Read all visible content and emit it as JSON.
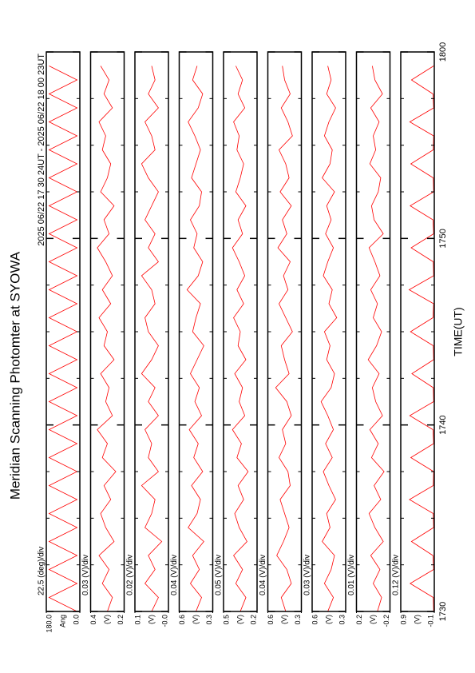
{
  "chart_data": {
    "type": "line",
    "title": "Meridian Scanning Photomter at SYOWA",
    "subtitle": "2025 06/22 17 30 24UT - 2025 06/22 18 00 23UT",
    "xlabel": "TIME(UT)",
    "color": "#ff0000",
    "xlim": [
      0,
      30
    ],
    "xticks": [
      {
        "value": 0,
        "label": "1730"
      },
      {
        "value": 10,
        "label": "1740"
      },
      {
        "value": 20,
        "label": "1750"
      },
      {
        "value": 30,
        "label": "1800"
      }
    ],
    "xminor": [
      2.5,
      5,
      7.5,
      12.5,
      15,
      17.5,
      22.5,
      25,
      27.5
    ],
    "x": [
      0,
      0.75,
      1.5,
      2.25,
      3,
      3.75,
      4.5,
      5.25,
      6,
      6.75,
      7.5,
      8.25,
      9,
      9.75,
      10.5,
      11.25,
      12,
      12.75,
      13.5,
      14.25,
      15,
      15.75,
      16.5,
      17.25,
      18,
      18.75,
      19.5,
      20.25,
      21,
      21.75,
      22.5,
      23.25,
      24,
      24.75,
      25.5,
      26.25,
      27,
      27.75,
      28.5,
      29.25
    ],
    "panels": [
      {
        "scale": "22.5 (deg)/div",
        "unit": "Ang",
        "ylim": [
          0,
          180
        ],
        "yticks": [
          {
            "value": 0,
            "label": "0.0"
          },
          {
            "value": 180,
            "label": "180.0"
          }
        ],
        "values": [
          15,
          165,
          15,
          165,
          15,
          165,
          15,
          165,
          15,
          165,
          15,
          165,
          15,
          165,
          15,
          165,
          15,
          165,
          15,
          165,
          15,
          165,
          15,
          165,
          15,
          165,
          15,
          165,
          15,
          165,
          15,
          165,
          15,
          165,
          15,
          165,
          15,
          165,
          15,
          165
        ]
      },
      {
        "scale": "0.03 (V)/div",
        "unit": "(V)",
        "ylim": [
          0.2,
          0.4
        ],
        "yticks": [
          0.2,
          0.4
        ],
        "values": [
          0.3,
          0.27,
          0.33,
          0.29,
          0.35,
          0.26,
          0.31,
          0.34,
          0.28,
          0.32,
          0.25,
          0.33,
          0.3,
          0.36,
          0.27,
          0.31,
          0.29,
          0.34,
          0.26,
          0.32,
          0.3,
          0.35,
          0.28,
          0.33,
          0.27,
          0.31,
          0.36,
          0.29,
          0.32,
          0.26,
          0.34,
          0.3,
          0.28,
          0.33,
          0.31,
          0.35,
          0.27,
          0.32,
          0.29,
          0.34
        ]
      },
      {
        "scale": "0.02 (V)/div",
        "unit": "(V)",
        "ylim": [
          0,
          0.1
        ],
        "yticks": [
          {
            "value": 0,
            "label": "-0.0"
          },
          0.1
        ],
        "values": [
          0.05,
          0.03,
          0.07,
          0.04,
          0.06,
          0.02,
          0.07,
          0.05,
          0.04,
          0.08,
          0.03,
          0.06,
          0.05,
          0.07,
          0.03,
          0.06,
          0.04,
          0.08,
          0.05,
          0.03,
          0.06,
          0.07,
          0.04,
          0.05,
          0.08,
          0.03,
          0.06,
          0.04,
          0.07,
          0.05,
          0.03,
          0.06,
          0.08,
          0.04,
          0.05,
          0.07,
          0.03,
          0.06,
          0.04,
          0.05
        ]
      },
      {
        "scale": "0.04 (V)/div",
        "unit": "(V)",
        "ylim": [
          0.3,
          0.6
        ],
        "yticks": [
          0.3,
          0.6
        ],
        "values": [
          0.45,
          0.4,
          0.5,
          0.42,
          0.48,
          0.38,
          0.52,
          0.44,
          0.41,
          0.49,
          0.39,
          0.47,
          0.43,
          0.51,
          0.4,
          0.46,
          0.42,
          0.5,
          0.44,
          0.38,
          0.48,
          0.45,
          0.41,
          0.53,
          0.43,
          0.39,
          0.47,
          0.44,
          0.5,
          0.42,
          0.4,
          0.49,
          0.45,
          0.41,
          0.46,
          0.52,
          0.43,
          0.39,
          0.48,
          0.44
        ]
      },
      {
        "scale": "0.05 (V)/div",
        "unit": "(V)",
        "ylim": [
          0.2,
          0.5
        ],
        "yticks": [
          0.2,
          0.5
        ],
        "values": [
          0.35,
          0.3,
          0.39,
          0.33,
          0.41,
          0.29,
          0.36,
          0.4,
          0.32,
          0.37,
          0.28,
          0.38,
          0.34,
          0.42,
          0.31,
          0.36,
          0.33,
          0.4,
          0.3,
          0.37,
          0.35,
          0.41,
          0.32,
          0.38,
          0.31,
          0.36,
          0.42,
          0.33,
          0.37,
          0.3,
          0.39,
          0.35,
          0.32,
          0.38,
          0.36,
          0.41,
          0.31,
          0.37,
          0.33,
          0.39
        ]
      },
      {
        "scale": "0.04 (V)/div",
        "unit": "(V)",
        "ylim": [
          0.3,
          0.6
        ],
        "yticks": [
          0.3,
          0.6
        ],
        "values": [
          0.44,
          0.48,
          0.39,
          0.43,
          0.52,
          0.46,
          0.41,
          0.45,
          0.49,
          0.4,
          0.42,
          0.5,
          0.44,
          0.47,
          0.39,
          0.43,
          0.53,
          0.41,
          0.45,
          0.48,
          0.38,
          0.44,
          0.5,
          0.42,
          0.46,
          0.4,
          0.51,
          0.43,
          0.47,
          0.39,
          0.49,
          0.41,
          0.44,
          0.5,
          0.38,
          0.42,
          0.48,
          0.4,
          0.45,
          0.47
        ]
      },
      {
        "scale": "0.03 (V)/div",
        "unit": "(V)",
        "ylim": [
          0.3,
          0.6
        ],
        "yticks": [
          0.3,
          0.6
        ],
        "values": [
          0.46,
          0.41,
          0.49,
          0.43,
          0.4,
          0.51,
          0.44,
          0.47,
          0.39,
          0.45,
          0.5,
          0.42,
          0.48,
          0.41,
          0.46,
          0.52,
          0.43,
          0.4,
          0.47,
          0.44,
          0.49,
          0.38,
          0.45,
          0.42,
          0.5,
          0.46,
          0.41,
          0.48,
          0.43,
          0.47,
          0.4,
          0.51,
          0.44,
          0.42,
          0.49,
          0.45,
          0.39,
          0.47,
          0.43,
          0.46
        ]
      },
      {
        "scale": "0.01 (V)/div",
        "unit": "(V)",
        "ylim": [
          -0.2,
          0.2
        ],
        "yticks": [
          -0.2,
          0.2
        ],
        "values": [
          -0.05,
          -0.1,
          0.0,
          -0.08,
          0.03,
          -0.12,
          -0.02,
          0.05,
          -0.09,
          -0.01,
          -0.13,
          0.02,
          -0.06,
          0.04,
          -0.11,
          -0.03,
          0.01,
          -0.07,
          0.06,
          -0.04,
          -0.1,
          0.0,
          -0.05,
          0.03,
          -0.08,
          -0.02,
          0.05,
          -0.12,
          -0.01,
          0.02,
          -0.06,
          -0.09,
          0.04,
          -0.03,
          0.0,
          -0.07,
          0.03,
          -0.11,
          -0.02,
          0.01
        ]
      },
      {
        "scale": "0.12 (V)/div",
        "unit": "(V)",
        "ylim": [
          -0.1,
          0.9
        ],
        "yticks": [
          -0.1,
          0.9
        ],
        "values": [
          -0.08,
          -0.07,
          0.62,
          -0.08,
          -0.06,
          0.58,
          -0.08,
          -0.07,
          0.64,
          -0.07,
          -0.08,
          0.6,
          -0.08,
          -0.06,
          0.63,
          -0.08,
          -0.07,
          0.57,
          -0.08,
          -0.07,
          0.61,
          -0.06,
          -0.08,
          0.65,
          -0.08,
          -0.07,
          0.59,
          -0.08,
          -0.06,
          0.62,
          -0.08,
          -0.07,
          0.6,
          -0.07,
          -0.08,
          0.63,
          -0.08,
          -0.06,
          0.58,
          -0.08
        ]
      }
    ]
  }
}
